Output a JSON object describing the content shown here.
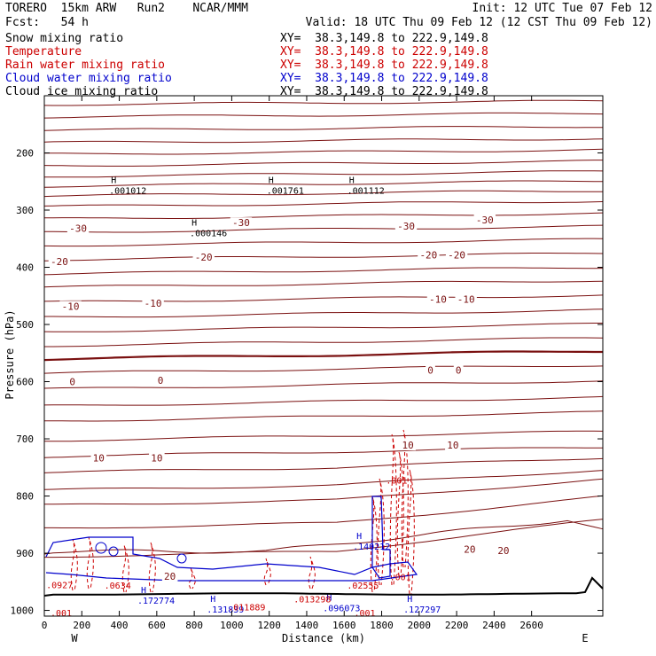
{
  "header": {
    "model": "TORERO  15km ARW   Run2    NCAR/MMM",
    "init": "Init: 12 UTC Tue 07 Feb 12",
    "fcst": "Fcst:   54 h",
    "valid": "Valid: 18 UTC Thu 09 Feb 12 (12 CST Thu 09 Feb 12)"
  },
  "fields": [
    {
      "name": "Snow mixing ratio",
      "xy": "XY=  38.3,149.8 to 222.9,149.8",
      "color": "#000000"
    },
    {
      "name": "Temperature",
      "xy": "XY=  38.3,149.8 to 222.9,149.8",
      "color": "#cc0000"
    },
    {
      "name": "Rain water mixing ratio",
      "xy": "XY=  38.3,149.8 to 222.9,149.8",
      "color": "#cc0000"
    },
    {
      "name": "Cloud water mixing ratio",
      "xy": "XY=  38.3,149.8 to 222.9,149.8",
      "color": "#0000cc"
    },
    {
      "name": "Cloud ice mixing ratio",
      "xy": "XY=  38.3,149.8 to 222.9,149.8",
      "color": "#000000"
    }
  ],
  "chart_data": {
    "type": "line",
    "xlabel": "Distance (km)",
    "ylabel": "Pressure (hPa)",
    "xlim": [
      0,
      2980
    ],
    "ylim": [
      1010,
      100
    ],
    "x_ticks": [
      0,
      200,
      400,
      600,
      800,
      1000,
      1200,
      1400,
      1600,
      1800,
      2000,
      2200,
      2400,
      2600
    ],
    "y_ticks": [
      200,
      300,
      400,
      500,
      600,
      700,
      800,
      900,
      1000
    ],
    "endpoints": {
      "west": "W",
      "east": "E"
    },
    "temperature_isotherm_labels": [
      {
        "value": "-30",
        "x": 180,
        "p": 332
      },
      {
        "value": "-30",
        "x": 1050,
        "p": 322
      },
      {
        "value": "-30",
        "x": 1930,
        "p": 328
      },
      {
        "value": "-30",
        "x": 2350,
        "p": 317
      },
      {
        "value": "-20",
        "x": 80,
        "p": 390
      },
      {
        "value": "-20",
        "x": 850,
        "p": 382
      },
      {
        "value": "-20",
        "x": 2050,
        "p": 378
      },
      {
        "value": "-20",
        "x": 2200,
        "p": 378
      },
      {
        "value": "-10",
        "x": 140,
        "p": 468
      },
      {
        "value": "-10",
        "x": 580,
        "p": 463
      },
      {
        "value": "-10",
        "x": 2100,
        "p": 456
      },
      {
        "value": "-10",
        "x": 2250,
        "p": 456
      },
      {
        "value": "0",
        "x": 150,
        "p": 600
      },
      {
        "value": "0",
        "x": 620,
        "p": 598
      },
      {
        "value": "0",
        "x": 2060,
        "p": 580
      },
      {
        "value": "0",
        "x": 2210,
        "p": 580
      },
      {
        "value": "10",
        "x": 290,
        "p": 733
      },
      {
        "value": "10",
        "x": 600,
        "p": 733
      },
      {
        "value": "10",
        "x": 1940,
        "p": 711
      },
      {
        "value": "10",
        "x": 2180,
        "p": 711
      },
      {
        "value": "20",
        "x": 670,
        "p": 940
      },
      {
        "value": "20",
        "x": 2270,
        "p": 893
      },
      {
        "value": "20",
        "x": 2450,
        "p": 895
      }
    ],
    "snow_maxima": [
      {
        "label": "H",
        "value": ".001012",
        "x": 370,
        "p": 253
      },
      {
        "label": "H",
        "value": ".000146",
        "x": 800,
        "p": 327
      },
      {
        "label": "H",
        "value": ".001761",
        "x": 1210,
        "p": 253
      },
      {
        "label": "H",
        "value": ".001112",
        "x": 1640,
        "p": 253
      }
    ],
    "cloud_water_maxima": [
      {
        "label": "H",
        "value": ".172774",
        "x": 530,
        "p": 970
      },
      {
        "label": "H",
        "value": ".131839",
        "x": 900,
        "p": 985
      },
      {
        "label": "H",
        "value": ".096073",
        "x": 1520,
        "p": 983
      },
      {
        "label": "H",
        "value": ".140212",
        "x": 1680,
        "p": 875
      },
      {
        "label": "H",
        "value": ".127297",
        "x": 1950,
        "p": 985
      }
    ],
    "rain_labels": [
      {
        "value": ".001",
        "x": 1880,
        "p": 778
      },
      {
        "value": ".001",
        "x": 1900,
        "p": 947
      },
      {
        "value": ".011889",
        "x": 1080,
        "p": 1000
      },
      {
        "value": ".013298",
        "x": 1430,
        "p": 986
      },
      {
        "value": ".02555",
        "x": 1700,
        "p": 962
      },
      {
        "value": ".001",
        "x": 90,
        "p": 1010
      },
      {
        "value": ".001",
        "x": 1710,
        "p": 1010
      }
    ],
    "left_edge_labels": [
      {
        "value": ".0927",
        "x": 10,
        "p": 961,
        "color": "#cc0000"
      },
      {
        "value": ".0634",
        "x": 320,
        "p": 962,
        "color": "#cc0000"
      }
    ]
  }
}
